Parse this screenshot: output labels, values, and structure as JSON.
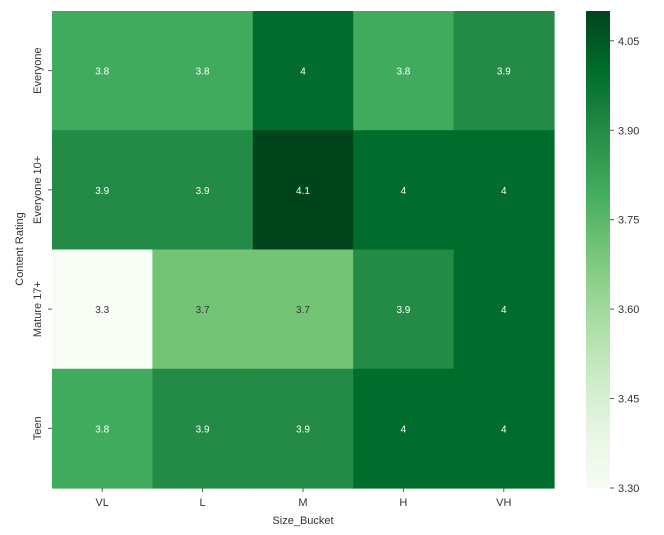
{
  "chart_data": {
    "type": "heatmap",
    "title": "",
    "xlabel": "Size_Bucket",
    "ylabel": "Content Rating",
    "x_categories": [
      "VL",
      "L",
      "M",
      "H",
      "VH"
    ],
    "y_categories": [
      "Everyone",
      "Everyone 10+",
      "Mature 17+",
      "Teen"
    ],
    "values": [
      [
        3.8,
        3.8,
        4.0,
        3.8,
        3.9
      ],
      [
        3.9,
        3.9,
        4.1,
        4.0,
        4.0
      ],
      [
        3.3,
        3.7,
        3.7,
        3.9,
        4.0
      ],
      [
        3.8,
        3.9,
        3.9,
        4.0,
        4.0
      ]
    ],
    "cell_labels": [
      [
        "3.8",
        "3.8",
        "4",
        "3.8",
        "3.9"
      ],
      [
        "3.9",
        "3.9",
        "4.1",
        "4",
        "4"
      ],
      [
        "3.3",
        "3.7",
        "3.7",
        "3.9",
        "4"
      ],
      [
        "3.8",
        "3.9",
        "3.9",
        "4",
        "4"
      ]
    ],
    "colormap": "Greens",
    "colorbar": {
      "vmin": 3.3,
      "vmax": 4.1,
      "ticks": [
        3.3,
        3.45,
        3.6,
        3.75,
        3.9,
        4.05
      ],
      "tick_labels": [
        "3.30",
        "3.45",
        "3.60",
        "3.75",
        "3.90",
        "4.05"
      ]
    },
    "grid": false,
    "colors": {
      "low": "#f7fcf5",
      "mid": "#74c476",
      "high": "#00441b",
      "text": "#ffffff",
      "axis_text": "#333333"
    }
  }
}
